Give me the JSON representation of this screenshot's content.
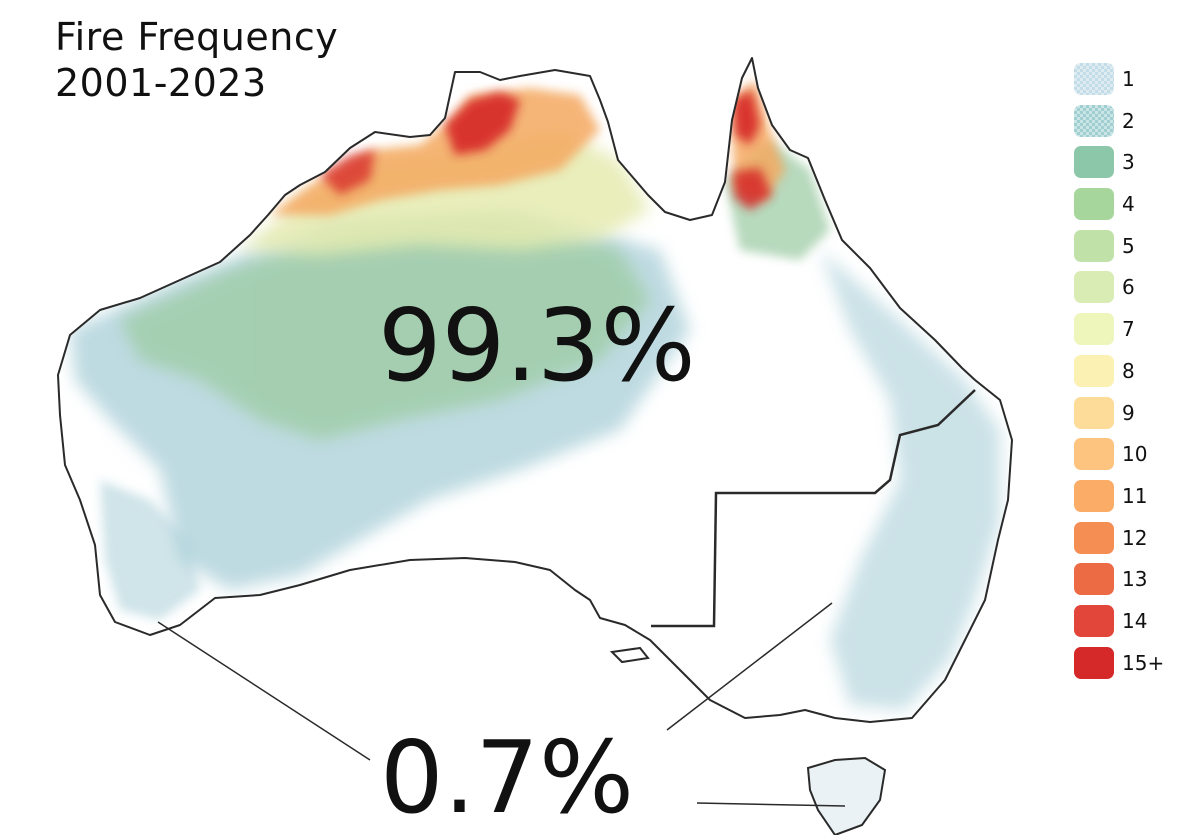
{
  "title": {
    "line1": "Fire Frequency",
    "line2": "2001-2023"
  },
  "stats": {
    "main": "99.3%",
    "southeast": "0.7%"
  },
  "legend": {
    "items": [
      {
        "label": "1",
        "color": "#c2dce8",
        "patterned": true
      },
      {
        "label": "2",
        "color": "#a0cfd2",
        "patterned": true
      },
      {
        "label": "3",
        "color": "#8cc7a9"
      },
      {
        "label": "4",
        "color": "#a6d69c"
      },
      {
        "label": "5",
        "color": "#c0e2a8"
      },
      {
        "label": "6",
        "color": "#d8ecb4"
      },
      {
        "label": "7",
        "color": "#eef6bc"
      },
      {
        "label": "8",
        "color": "#fbf1b2"
      },
      {
        "label": "9",
        "color": "#fcdc98"
      },
      {
        "label": "10",
        "color": "#fcc47e"
      },
      {
        "label": "11",
        "color": "#fbac67"
      },
      {
        "label": "12",
        "color": "#f58e52"
      },
      {
        "label": "13",
        "color": "#ec6a44"
      },
      {
        "label": "14",
        "color": "#e2463a"
      },
      {
        "label": "15+",
        "color": "#d52828"
      }
    ]
  },
  "map_colors": {
    "land": "#ffffff",
    "coast": "#2a2a2a",
    "sparse_fire": "#a9cfd8",
    "medium_fire": "#9fcca6",
    "northern_fire": "#e5ebb0",
    "high_fire": "#f4a860",
    "extreme_fire": "#d52828"
  }
}
